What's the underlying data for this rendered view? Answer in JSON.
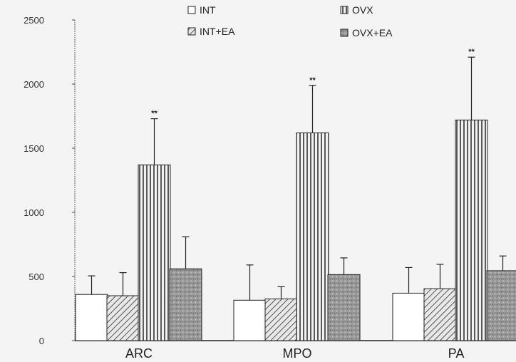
{
  "chart_data": {
    "type": "bar",
    "categories": [
      "ARC",
      "MPO",
      "PA"
    ],
    "series": [
      {
        "name": "INT",
        "values": [
          360,
          315,
          370
        ],
        "errors": [
          145,
          275,
          200
        ],
        "fill": "white"
      },
      {
        "name": "INT+EA",
        "values": [
          350,
          325,
          405
        ],
        "errors": [
          180,
          95,
          190
        ],
        "fill": "diag"
      },
      {
        "name": "OVX",
        "values": [
          1370,
          1620,
          1720
        ],
        "errors": [
          360,
          370,
          490
        ],
        "fill": "vert"
      },
      {
        "name": "OVX+EA",
        "values": [
          560,
          515,
          545
        ],
        "errors": [
          250,
          130,
          115
        ],
        "fill": "stipple"
      }
    ],
    "significance": [
      {
        "category": "ARC",
        "series": "OVX",
        "label": "**"
      },
      {
        "category": "MPO",
        "series": "OVX",
        "label": "**"
      },
      {
        "category": "PA",
        "series": "OVX",
        "label": "**"
      }
    ],
    "yticks": [
      {
        "value": 0,
        "label": "0"
      },
      {
        "value": 500,
        "label": "500"
      },
      {
        "value": 1000,
        "label": "1000"
      },
      {
        "value": 1500,
        "label": "1500"
      },
      {
        "value": 2000,
        "label": "2000"
      },
      {
        "value": 2500,
        "label": "2500"
      }
    ],
    "ylim": [
      0,
      2500
    ],
    "legend_position": "top",
    "grid": false
  }
}
